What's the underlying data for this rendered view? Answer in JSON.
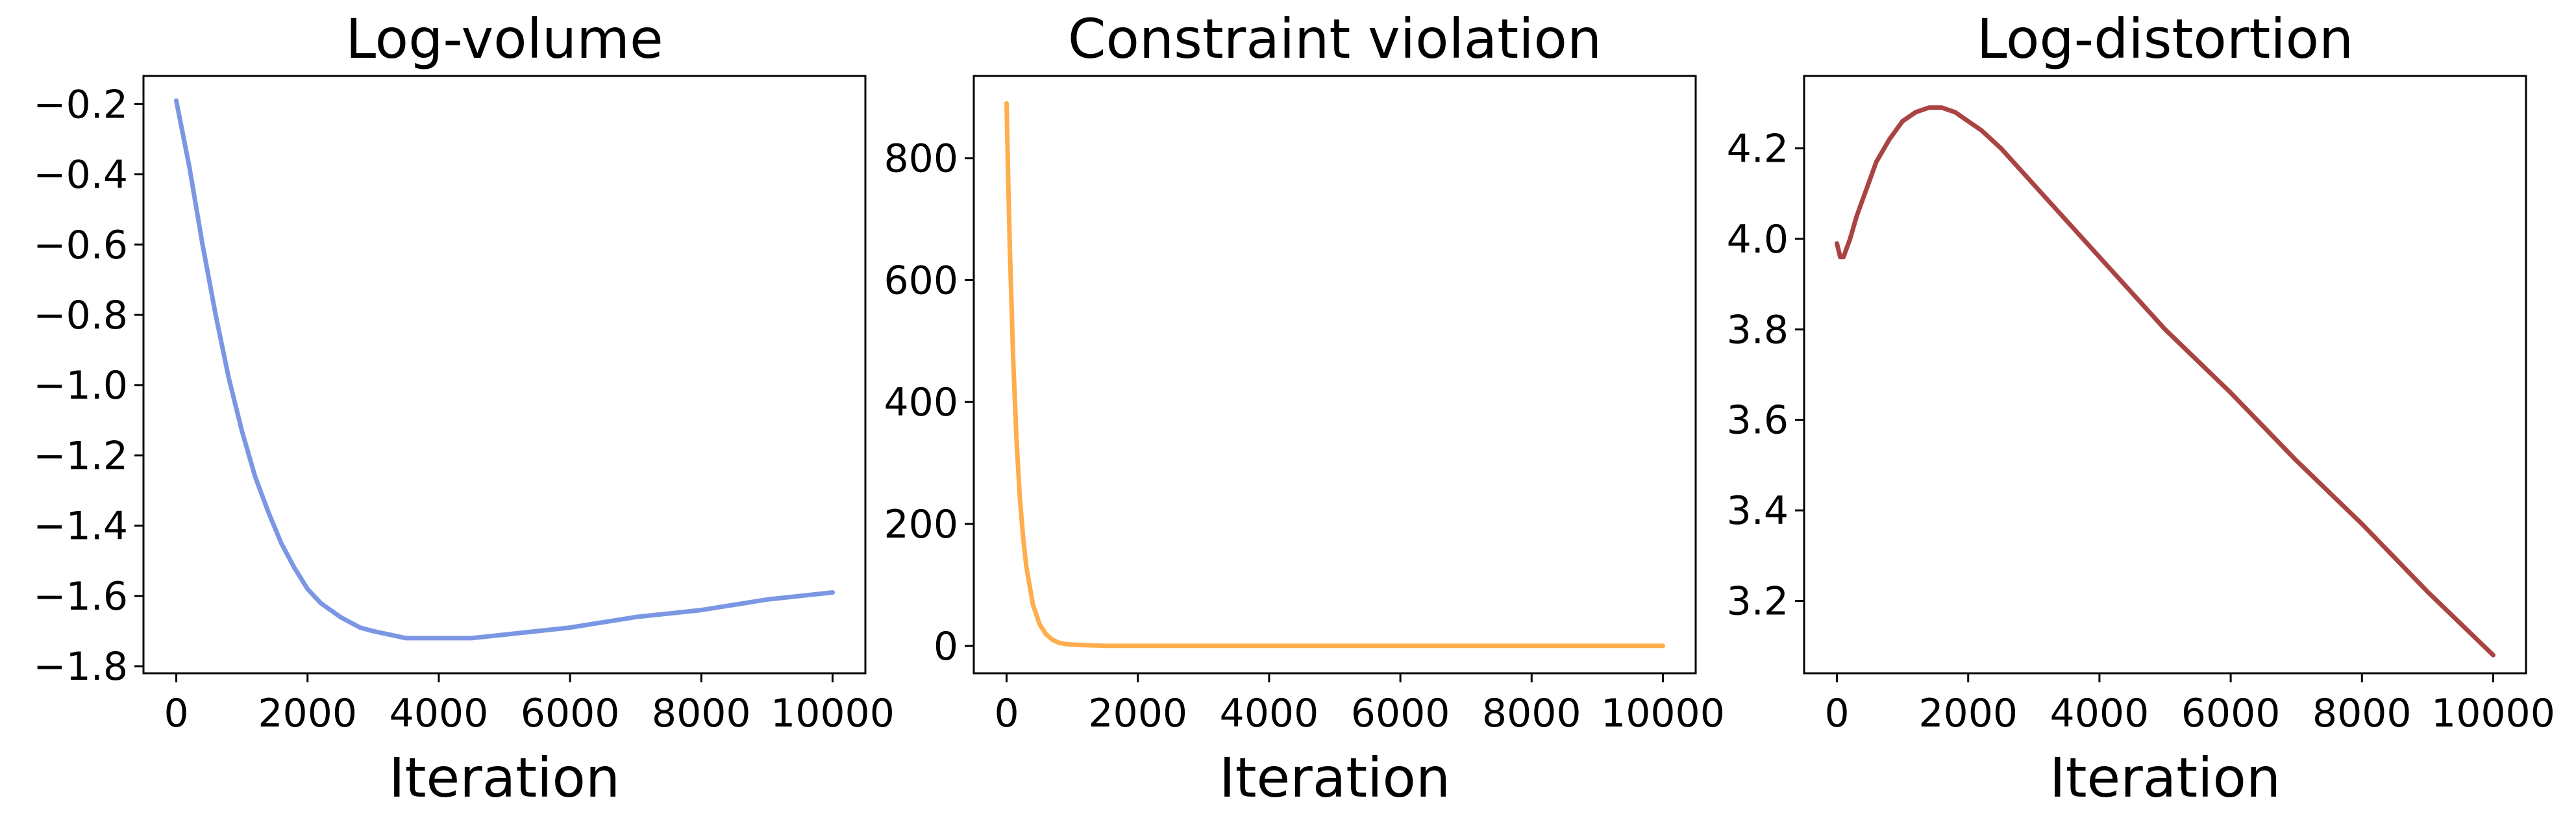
{
  "chart_data": [
    {
      "type": "line",
      "title": "Log-volume",
      "xlabel": "Iteration",
      "ylabel": "",
      "xlim": [
        -500,
        10500
      ],
      "ylim": [
        -1.82,
        -0.12
      ],
      "xticks": [
        0,
        2000,
        4000,
        6000,
        8000,
        10000
      ],
      "xtick_labels": [
        "0",
        "2000",
        "4000",
        "6000",
        "8000",
        "10000"
      ],
      "yticks": [
        -0.2,
        -0.4,
        -0.6,
        -0.8,
        -1.0,
        -1.2,
        -1.4,
        -1.6,
        -1.8
      ],
      "ytick_labels": [
        "−0.2",
        "−0.4",
        "−0.6",
        "−0.8",
        "−1.0",
        "−1.2",
        "−1.4",
        "−1.6",
        "−1.8"
      ],
      "grid": false,
      "series": [
        {
          "name": "Log-volume",
          "color": "#7b97e4",
          "x": [
            0,
            200,
            400,
            600,
            800,
            1000,
            1200,
            1400,
            1600,
            1800,
            2000,
            2200,
            2500,
            2800,
            3000,
            3500,
            4000,
            4500,
            5000,
            6000,
            7000,
            8000,
            9000,
            10000
          ],
          "y": [
            -0.19,
            -0.38,
            -0.6,
            -0.8,
            -0.98,
            -1.13,
            -1.26,
            -1.36,
            -1.45,
            -1.52,
            -1.58,
            -1.62,
            -1.66,
            -1.69,
            -1.7,
            -1.72,
            -1.72,
            -1.72,
            -1.71,
            -1.69,
            -1.66,
            -1.64,
            -1.61,
            -1.59
          ]
        }
      ]
    },
    {
      "type": "line",
      "title": "Constraint violation",
      "xlabel": "Iteration",
      "ylabel": "",
      "xlim": [
        -500,
        10500
      ],
      "ylim": [
        -45,
        935
      ],
      "xticks": [
        0,
        2000,
        4000,
        6000,
        8000,
        10000
      ],
      "xtick_labels": [
        "0",
        "2000",
        "4000",
        "6000",
        "8000",
        "10000"
      ],
      "yticks": [
        0,
        200,
        400,
        600,
        800
      ],
      "ytick_labels": [
        "0",
        "200",
        "400",
        "600",
        "800"
      ],
      "grid": false,
      "series": [
        {
          "name": "Constraint violation",
          "color": "#ffad4d",
          "x": [
            0,
            25,
            50,
            100,
            150,
            200,
            250,
            300,
            400,
            500,
            600,
            700,
            800,
            900,
            1000,
            1200,
            1500,
            2000,
            4000,
            6000,
            8000,
            10000
          ],
          "y": [
            890,
            760,
            650,
            470,
            340,
            245,
            180,
            130,
            68,
            36,
            19,
            10,
            5,
            3,
            2,
            1,
            0,
            0,
            0,
            0,
            0,
            0
          ]
        }
      ]
    },
    {
      "type": "line",
      "title": "Log-distortion",
      "xlabel": "Iteration",
      "ylabel": "",
      "xlim": [
        -500,
        10500
      ],
      "ylim": [
        3.04,
        4.36
      ],
      "xticks": [
        0,
        2000,
        4000,
        6000,
        8000,
        10000
      ],
      "xtick_labels": [
        "0",
        "2000",
        "4000",
        "6000",
        "8000",
        "10000"
      ],
      "yticks": [
        3.2,
        3.4,
        3.6,
        3.8,
        4.0,
        4.2
      ],
      "ytick_labels": [
        "3.2",
        "3.4",
        "3.6",
        "3.8",
        "4.0",
        "4.2"
      ],
      "grid": false,
      "series": [
        {
          "name": "Log-distortion",
          "color": "#a94442",
          "x": [
            0,
            50,
            100,
            150,
            200,
            300,
            400,
            500,
            600,
            800,
            1000,
            1200,
            1400,
            1600,
            1800,
            2000,
            2200,
            2500,
            3000,
            4000,
            5000,
            6000,
            7000,
            8000,
            9000,
            10000
          ],
          "y": [
            3.99,
            3.96,
            3.96,
            3.98,
            4.0,
            4.05,
            4.09,
            4.13,
            4.17,
            4.22,
            4.26,
            4.28,
            4.29,
            4.29,
            4.28,
            4.26,
            4.24,
            4.2,
            4.12,
            3.96,
            3.8,
            3.66,
            3.51,
            3.37,
            3.22,
            3.08
          ]
        }
      ]
    }
  ]
}
